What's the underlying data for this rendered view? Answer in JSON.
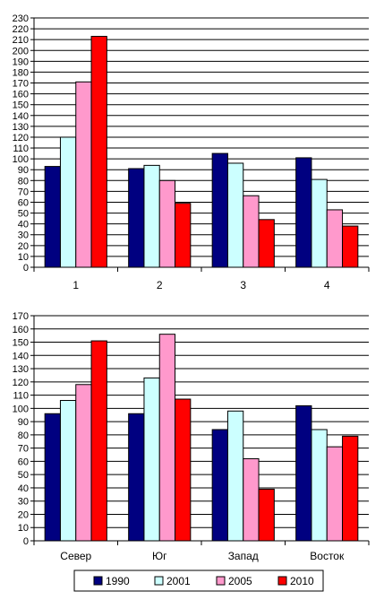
{
  "chart_data": [
    {
      "type": "bar",
      "categories": [
        "1",
        "2",
        "3",
        "4"
      ],
      "ylim": [
        0,
        230
      ],
      "ystep": 10,
      "grid": true,
      "series": [
        {
          "name": "1990",
          "color": "#000080",
          "values": [
            93,
            91,
            105,
            101
          ]
        },
        {
          "name": "2001",
          "color": "#ccffff",
          "values": [
            120,
            94,
            96,
            81
          ]
        },
        {
          "name": "2005",
          "color": "#ff99cc",
          "values": [
            171,
            80,
            66,
            53
          ]
        },
        {
          "name": "2010",
          "color": "#ff0000",
          "values": [
            213,
            59,
            44,
            38
          ]
        }
      ]
    },
    {
      "type": "bar",
      "categories": [
        "Север",
        "Юг",
        "Запад",
        "Восток"
      ],
      "ylim": [
        0,
        170
      ],
      "ystep": 10,
      "grid": true,
      "legend": "bottom",
      "series": [
        {
          "name": "1990",
          "color": "#000080",
          "values": [
            96,
            96,
            84,
            102
          ]
        },
        {
          "name": "2001",
          "color": "#ccffff",
          "values": [
            106,
            123,
            98,
            84
          ]
        },
        {
          "name": "2005",
          "color": "#ff99cc",
          "values": [
            118,
            156,
            62,
            71
          ]
        },
        {
          "name": "2010",
          "color": "#ff0000",
          "values": [
            151,
            107,
            39,
            79
          ]
        }
      ]
    }
  ]
}
